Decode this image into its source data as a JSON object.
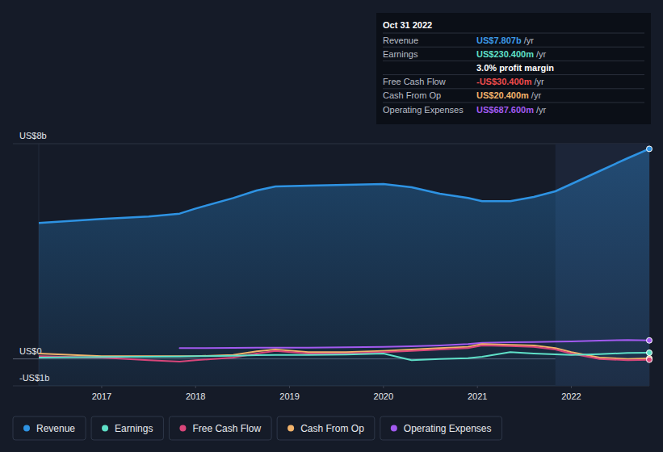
{
  "chart_data": {
    "type": "line",
    "x": [
      2016.33,
      2017.0,
      2017.5,
      2017.83,
      2018.0,
      2018.4,
      2018.65,
      2018.85,
      2019.2,
      2019.6,
      2020.0,
      2020.3,
      2020.6,
      2020.9,
      2021.05,
      2021.35,
      2021.6,
      2021.83,
      2022.0,
      2022.3,
      2022.6,
      2022.83
    ],
    "xlim": [
      2016.33,
      2022.83
    ],
    "xticks": [
      2017,
      2018,
      2019,
      2020,
      2021,
      2022
    ],
    "ylim": [
      -1,
      8
    ],
    "yticks": [
      {
        "value": -1,
        "label": "-US$1b"
      },
      {
        "value": 0,
        "label": "US$0"
      },
      {
        "value": 8,
        "label": "US$8b"
      }
    ],
    "grid": true,
    "legend": "bottom-left",
    "highlight": {
      "x": [
        2021.83,
        2022.83
      ]
    },
    "series": [
      {
        "name": "Revenue",
        "color": "#2e93e3",
        "type": "area",
        "values": [
          5.05,
          5.2,
          5.29,
          5.4,
          5.59,
          5.98,
          6.26,
          6.41,
          6.44,
          6.47,
          6.5,
          6.38,
          6.14,
          5.98,
          5.86,
          5.86,
          6.02,
          6.23,
          6.5,
          6.98,
          7.46,
          7.807
        ]
      },
      {
        "name": "Earnings",
        "color": "#5fe0c8",
        "values": [
          0.05,
          0.07,
          0.08,
          0.09,
          0.1,
          0.12,
          0.14,
          0.15,
          0.15,
          0.16,
          0.2,
          -0.05,
          0.0,
          0.03,
          0.08,
          0.25,
          0.2,
          0.17,
          0.15,
          0.18,
          0.22,
          0.2304
        ]
      },
      {
        "name": "Free Cash Flow",
        "color": "#d9467a",
        "values": [
          0.1,
          0.05,
          -0.05,
          -0.1,
          -0.05,
          0.05,
          0.2,
          0.3,
          0.2,
          0.2,
          0.25,
          0.3,
          0.35,
          0.4,
          0.5,
          0.48,
          0.45,
          0.35,
          0.2,
          0.0,
          -0.05,
          -0.0304
        ]
      },
      {
        "name": "Cash From Op",
        "color": "#f2b36b",
        "values": [
          0.2,
          0.1,
          0.1,
          0.1,
          0.1,
          0.15,
          0.28,
          0.35,
          0.25,
          0.25,
          0.3,
          0.35,
          0.4,
          0.45,
          0.55,
          0.52,
          0.5,
          0.4,
          0.25,
          0.05,
          0.0,
          0.0204
        ]
      },
      {
        "name": "Operating Expenses",
        "color": "#a25af0",
        "values": [
          null,
          null,
          null,
          0.4,
          0.4,
          0.41,
          0.42,
          0.42,
          0.42,
          0.43,
          0.45,
          0.47,
          0.5,
          0.55,
          0.6,
          0.62,
          0.63,
          0.64,
          0.65,
          0.68,
          0.7,
          0.6876
        ]
      }
    ],
    "annotations": {
      "date": "Oct 31 2022",
      "rows": [
        {
          "label": "Revenue",
          "value": "US$7.807b",
          "unit": "/yr",
          "color": "#3d9be9"
        },
        {
          "label": "Earnings",
          "value": "US$230.400m",
          "unit": "/yr",
          "color": "#5fe0c8"
        },
        {
          "value": "3.0% profit margin",
          "color": "#ffffff"
        },
        {
          "label": "Free Cash Flow",
          "value": "-US$30.400m",
          "unit": "/yr",
          "color": "#f04c4c"
        },
        {
          "label": "Cash From Op",
          "value": "US$20.400m",
          "unit": "/yr",
          "color": "#f2b36b"
        },
        {
          "label": "Operating Expenses",
          "value": "US$687.600m",
          "unit": "/yr",
          "color": "#a25af0"
        }
      ]
    }
  }
}
